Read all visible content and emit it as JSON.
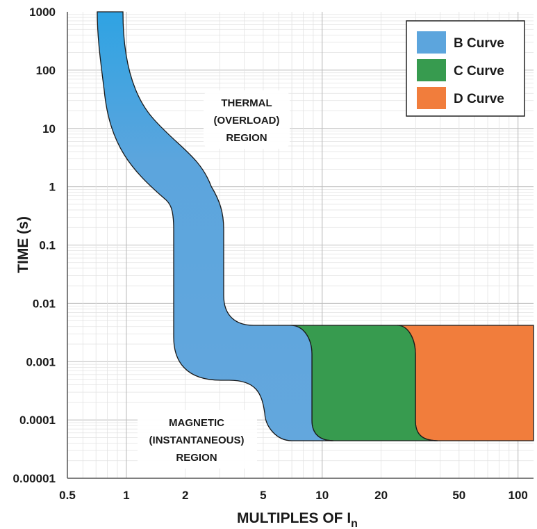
{
  "chart_data": {
    "type": "area",
    "title": "",
    "xlabel": "MULTIPLES OF I",
    "xlabel_subscript": "n",
    "ylabel": "TIME (s)",
    "x_scale": "log",
    "y_scale": "log",
    "xlim": [
      0.5,
      120
    ],
    "ylim": [
      1e-05,
      1000
    ],
    "grid": true,
    "legend_position": "top-right",
    "x_ticks": [
      "0.5",
      "1",
      "2",
      "5",
      "10",
      "20",
      "50",
      "100"
    ],
    "y_ticks": [
      "1000",
      "100",
      "10",
      "1",
      "0.1",
      "0.01",
      "0.001",
      "0.0001",
      "0.00001"
    ],
    "series": [
      {
        "name": "B Curve",
        "color": "#5ca5dd",
        "band_left_edge": [
          [
            0.7,
            1000
          ],
          [
            0.75,
            100
          ],
          [
            0.95,
            10
          ],
          [
            1.25,
            1.6
          ],
          [
            1.6,
            0.5
          ],
          [
            1.6,
            0.001
          ],
          [
            2.0,
            0.0005
          ],
          [
            3.3,
            0.00035
          ],
          [
            4.8,
            8e-05
          ],
          [
            6.5,
            4e-05
          ]
        ],
        "band_right_edge": [
          [
            0.8,
            1000
          ],
          [
            0.85,
            100
          ],
          [
            1.35,
            10
          ],
          [
            2.4,
            1.6
          ],
          [
            2.8,
            0.1
          ],
          [
            2.8,
            0.01
          ],
          [
            3.6,
            0.004
          ],
          [
            6.5,
            0.004
          ]
        ]
      },
      {
        "name": "C Curve",
        "color": "#379b4f",
        "trip_range_x": [
          8,
          28
        ],
        "time_range": [
          4e-05,
          0.004
        ]
      },
      {
        "name": "D Curve",
        "color": "#f17d3c",
        "trip_range_x": [
          28,
          120
        ],
        "time_range": [
          4e-05,
          0.004
        ]
      }
    ],
    "annotations": [
      {
        "lines": [
          "THERMAL",
          "(OVERLOAD)",
          "REGION"
        ]
      },
      {
        "lines": [
          "MAGNETIC",
          "(INSTANTANEOUS)",
          "REGION"
        ]
      }
    ]
  }
}
